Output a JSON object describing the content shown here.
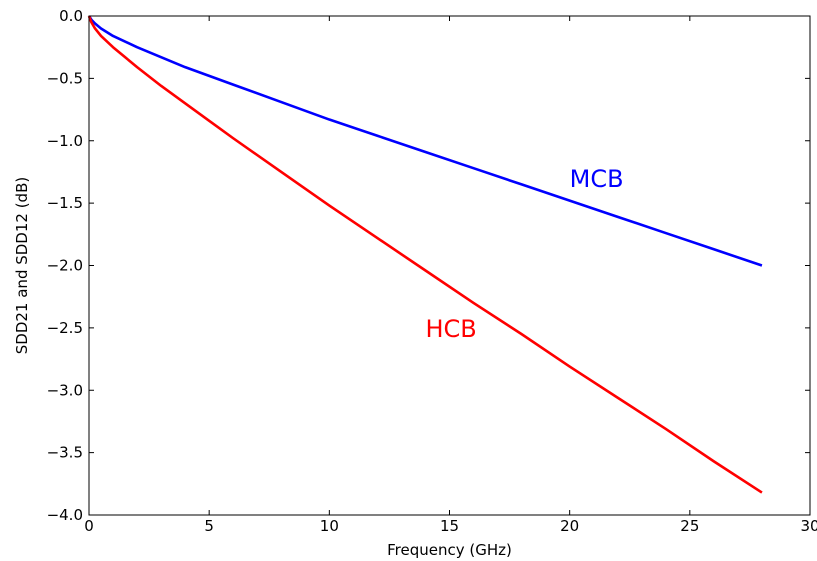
{
  "chart_data": {
    "type": "line",
    "title": "",
    "xlabel": "Frequency (GHz)",
    "ylabel": "SDD21 and SDD12 (dB)",
    "xlim": [
      0,
      30
    ],
    "ylim": [
      -4.0,
      0.0
    ],
    "xticks": [
      0,
      5,
      10,
      15,
      20,
      25,
      30
    ],
    "xtick_labels": [
      "0",
      "5",
      "10",
      "15",
      "20",
      "25",
      "30"
    ],
    "yticks": [
      0.0,
      -0.5,
      -1.0,
      -1.5,
      -2.0,
      -2.5,
      -3.0,
      -3.5,
      -4.0
    ],
    "ytick_labels": [
      "0.0",
      "−0.5",
      "−1.0",
      "−1.5",
      "−2.0",
      "−2.5",
      "−3.0",
      "−3.5",
      "−4.0"
    ],
    "grid": false,
    "series": [
      {
        "name": "MCB",
        "color": "#0000ff",
        "x": [
          0,
          0.1,
          0.25,
          0.5,
          1,
          2,
          3,
          4,
          5,
          6,
          8,
          10,
          12,
          14,
          16,
          18,
          20,
          22,
          24,
          26,
          28
        ],
        "y": [
          0,
          -0.03,
          -0.06,
          -0.1,
          -0.16,
          -0.25,
          -0.33,
          -0.41,
          -0.48,
          -0.55,
          -0.69,
          -0.83,
          -0.96,
          -1.09,
          -1.22,
          -1.35,
          -1.48,
          -1.61,
          -1.74,
          -1.87,
          -2.0
        ]
      },
      {
        "name": "HCB",
        "color": "#ff0000",
        "x": [
          0,
          0.1,
          0.25,
          0.5,
          1,
          2,
          3,
          4,
          5,
          6,
          8,
          10,
          12,
          14,
          16,
          18,
          20,
          22,
          24,
          26,
          28
        ],
        "y": [
          0,
          -0.05,
          -0.1,
          -0.16,
          -0.25,
          -0.41,
          -0.56,
          -0.7,
          -0.84,
          -0.98,
          -1.25,
          -1.52,
          -1.78,
          -2.04,
          -2.3,
          -2.55,
          -2.81,
          -3.06,
          -3.31,
          -3.57,
          -3.82
        ]
      }
    ],
    "annotations": [
      {
        "text": "MCB",
        "color": "#0000ff",
        "x": 20,
        "y": -1.3
      },
      {
        "text": "HCB",
        "color": "#ff0000",
        "x": 14,
        "y": -2.5
      }
    ]
  }
}
